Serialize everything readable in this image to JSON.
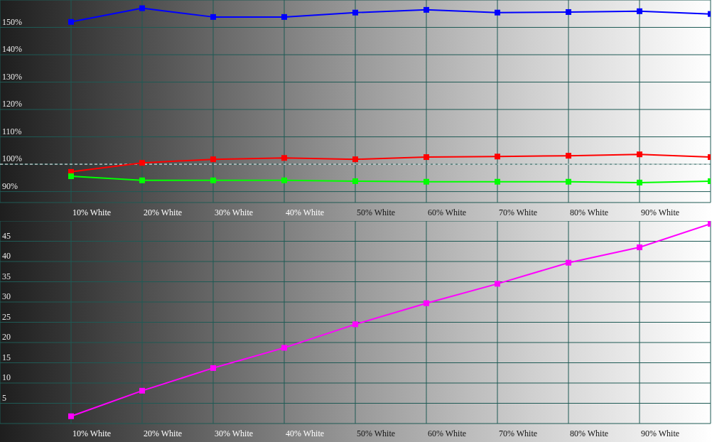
{
  "chart_data": [
    {
      "type": "line",
      "categories": [
        "10% White",
        "20% White",
        "30% White",
        "40% White",
        "50% White",
        "60% White",
        "70% White",
        "80% White",
        "90% White",
        null
      ],
      "series": [
        {
          "color": "#0000ff",
          "values": [
            152,
            157,
            153.8,
            153.8,
            155.4,
            156.4,
            155.4,
            155.6,
            155.9,
            154.9
          ]
        },
        {
          "color": "#ff0000",
          "values": [
            97.2,
            100.5,
            101.8,
            102.3,
            101.8,
            102.6,
            102.8,
            103.1,
            103.6,
            102.6
          ]
        },
        {
          "color": "#00ff00",
          "values": [
            95.6,
            94.1,
            94.1,
            94.1,
            93.8,
            93.6,
            93.6,
            93.6,
            93.3,
            93.8
          ]
        }
      ],
      "ylim": [
        86,
        160
      ],
      "yticks": [
        {
          "value": 90,
          "label": "90%"
        },
        {
          "value": 100,
          "label": "100%"
        },
        {
          "value": 110,
          "label": "110%"
        },
        {
          "value": 120,
          "label": "120%"
        },
        {
          "value": 130,
          "label": "130%"
        },
        {
          "value": 140,
          "label": "140%"
        },
        {
          "value": 150,
          "label": "150%"
        }
      ],
      "grid": true,
      "marker": "square",
      "line_style": "solid",
      "ref_lines": [
        {
          "axis": "y",
          "value": 100,
          "color": "#ffffff",
          "line_style": "dashed"
        }
      ]
    },
    {
      "type": "line",
      "categories": [
        "10% White",
        "20% White",
        "30% White",
        "40% White",
        "50% White",
        "60% White",
        "70% White",
        "80% White",
        "90% White",
        null
      ],
      "series": [
        {
          "color": "#ff00ff",
          "values": [
            1.8,
            8.1,
            13.7,
            18.7,
            24.5,
            29.7,
            34.5,
            39.7,
            43.5,
            49.3
          ]
        }
      ],
      "ylim": [
        0,
        50
      ],
      "yticks": [
        5,
        10,
        15,
        20,
        25,
        30,
        35,
        40,
        45
      ],
      "grid": true,
      "marker": "square",
      "line_style": "solid"
    }
  ]
}
